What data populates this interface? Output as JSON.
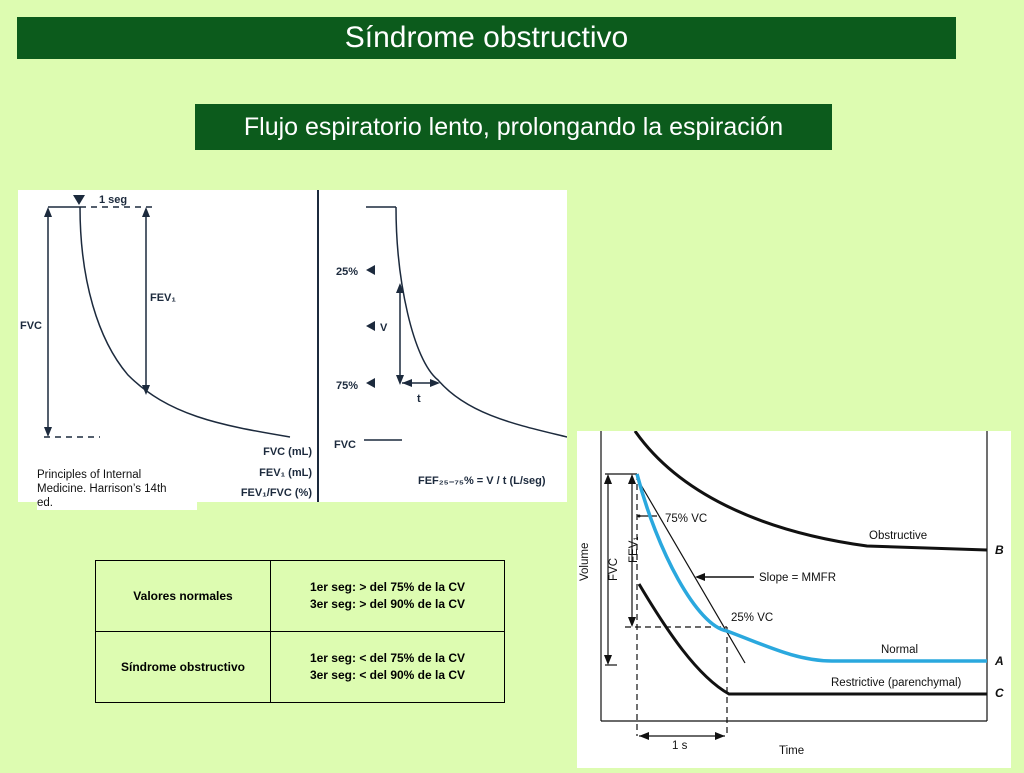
{
  "title": "Síndrome obstructivo",
  "subtitle": "Flujo espiratorio lento, prolongando la espiración",
  "left_figure": {
    "one_sec": "1 seg",
    "fvc": "FVC",
    "fev1": "FEV₁",
    "legend": [
      "FVC (mL)",
      "FEV₁ (mL)",
      "FEV₁/FVC (%)"
    ],
    "pct25": "25%",
    "pct75": "75%",
    "v_label": "V",
    "t_label": "t",
    "fvc_right": "FVC",
    "fef_formula": "FEF₂₅₋₇₅% = V / t (L/seg)"
  },
  "caption": {
    "lines": [
      "Principles of Internal",
      "Medicine. Harrison’s 14th",
      "ed."
    ]
  },
  "table": {
    "row1": {
      "label": "Valores normales",
      "line1": "1er seg: > del 75% de la CV",
      "line2": "3er seg: > del 90% de la CV"
    },
    "row2": {
      "label": "Síndrome obstructivo",
      "line1": "1er seg: < del 75% de la CV",
      "line2": "3er seg: < del 90% de la CV"
    }
  },
  "right_figure": {
    "volume": "Volume",
    "fvc": "FVC",
    "fev1": "FEV₁",
    "vc75": "75% VC",
    "vc25": "25% VC",
    "slope": "Slope = MMFR",
    "obstructive": "Obstructive",
    "normal": "Normal",
    "restrictive": "Restrictive (parenchymal)",
    "b": "B",
    "a": "A",
    "c": "C",
    "one_s": "1 s",
    "time": "Time",
    "normal_color": "#2aa8de"
  }
}
